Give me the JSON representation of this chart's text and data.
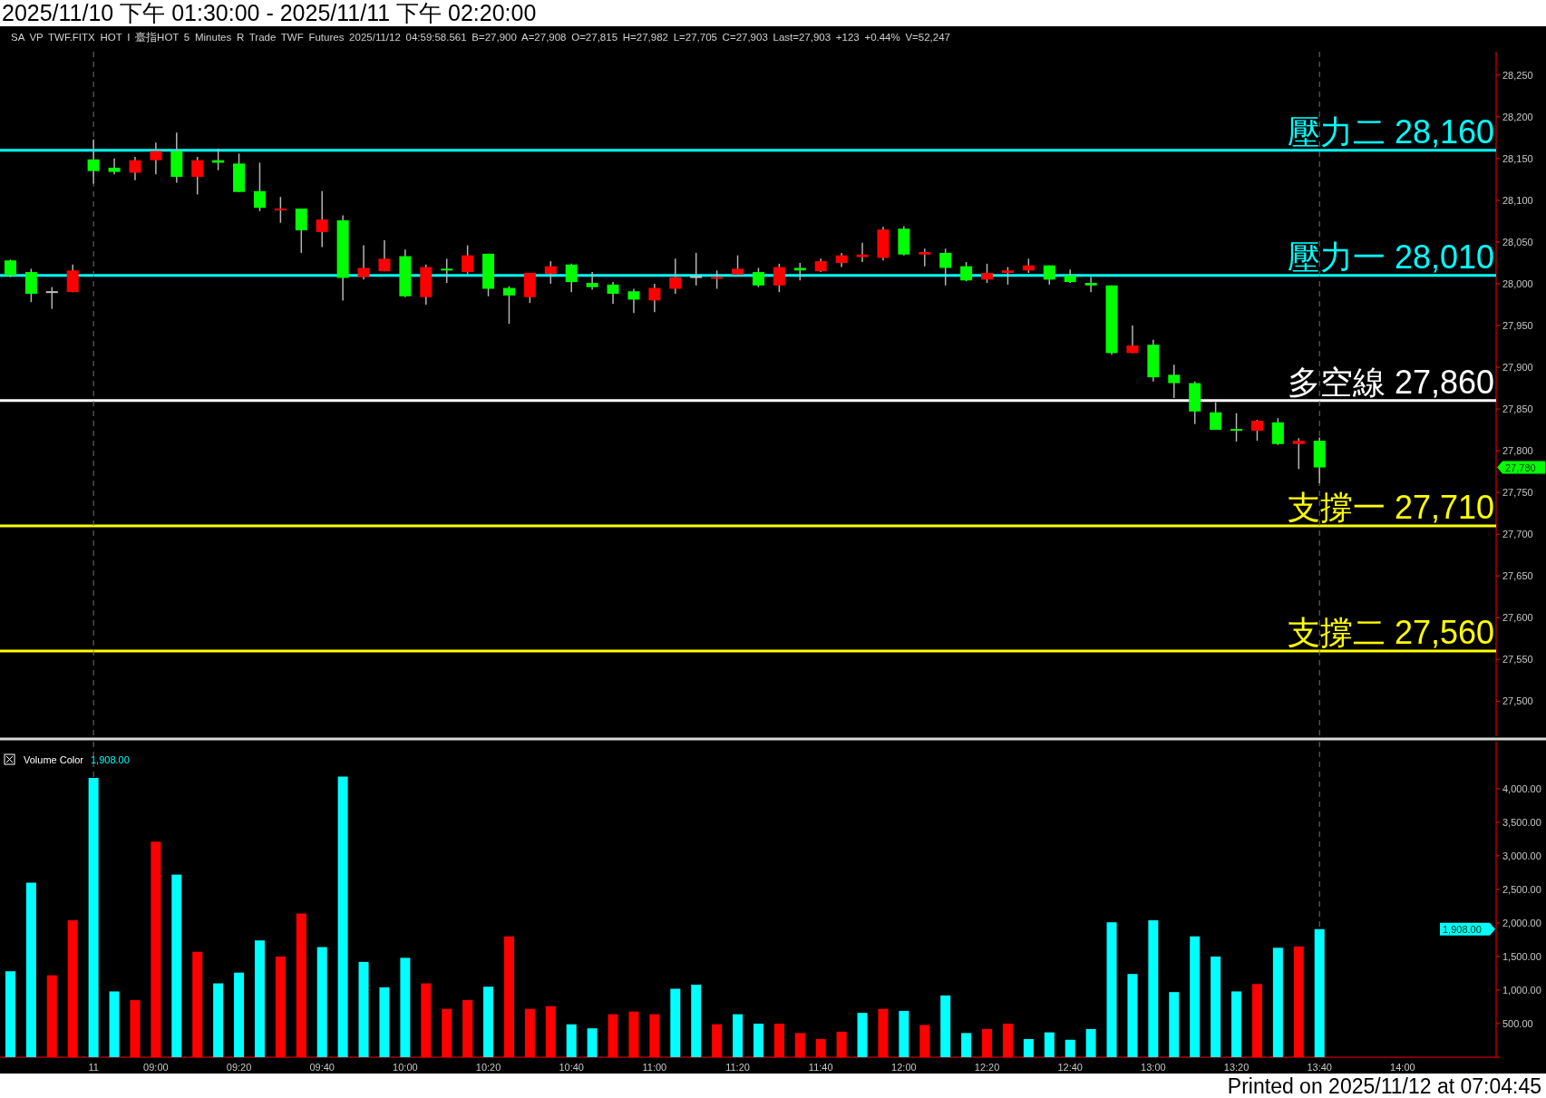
{
  "chart_data": [
    {
      "type": "candlestick",
      "title": "2025/11/10 下午 01:30:00 - 2025/11/11 下午 02:20:00",
      "subtitle": "SA VP TWF.FITX HOT I 臺指HOT 5 Minutes R Trade TWF Futures 2025/11/12 04:59:58.561 B=27,900 A=27,908 O=27,815 H=27,982 L=27,705 C=27,903 Last=27,903 +123 +0.44% V=52,247",
      "categories": [
        null,
        null,
        null,
        null,
        "11",
        null,
        null,
        "09:00",
        null,
        null,
        null,
        "09:20",
        null,
        null,
        null,
        "09:40",
        null,
        null,
        null,
        "10:00",
        null,
        null,
        null,
        "10:20",
        null,
        null,
        null,
        "10:40",
        null,
        null,
        null,
        "11:00",
        null,
        null,
        null,
        "11:20",
        null,
        null,
        null,
        "11:40",
        null,
        null,
        null,
        "12:00",
        null,
        null,
        null,
        "12:20",
        null,
        null,
        null,
        "12:40",
        null,
        null,
        null,
        "13:00",
        null,
        null,
        null,
        "13:20",
        null,
        null,
        null,
        "13:40",
        null,
        null,
        null,
        "14:00",
        null,
        null,
        null,
        null
      ],
      "ohlc": [
        [
          28028,
          28029,
          28008,
          28010
        ],
        [
          28014,
          28018,
          27978,
          27988
        ],
        [
          27990,
          27996,
          27970,
          27990
        ],
        [
          27990,
          28023,
          27990,
          28016
        ],
        [
          28149,
          28173,
          28120,
          28135
        ],
        [
          28139,
          28150,
          28131,
          28134
        ],
        [
          28133,
          28152,
          28124,
          28148
        ],
        [
          28148,
          28169,
          28131,
          28159
        ],
        [
          28159,
          28181,
          28121,
          28128
        ],
        [
          28128,
          28152,
          28107,
          28148
        ],
        [
          28148,
          28162,
          28136,
          28145
        ],
        [
          28144,
          28156,
          28110,
          28110
        ],
        [
          28111,
          28145,
          28087,
          28091
        ],
        [
          28088,
          28104,
          28073,
          28090
        ],
        [
          28090,
          28090,
          28037,
          28064
        ],
        [
          28062,
          28111,
          28044,
          28077
        ],
        [
          28076,
          28082,
          27980,
          28007
        ],
        [
          28008,
          28046,
          28005,
          28019
        ],
        [
          28015,
          28052,
          28015,
          28030
        ],
        [
          28033,
          28041,
          27984,
          27985
        ],
        [
          27984,
          28023,
          27975,
          28020
        ],
        [
          28018,
          28030,
          28001,
          28016
        ],
        [
          28014,
          28046,
          28012,
          28034
        ],
        [
          28036,
          28036,
          27985,
          27994
        ],
        [
          27995,
          27997,
          27952,
          27986
        ],
        [
          27984,
          28013,
          27977,
          28013
        ],
        [
          28012,
          28027,
          28000,
          28021
        ],
        [
          28023,
          28024,
          27990,
          28002
        ],
        [
          28001,
          28014,
          27993,
          27996
        ],
        [
          27999,
          28002,
          27976,
          27988
        ],
        [
          27991,
          27994,
          27965,
          27981
        ],
        [
          27980,
          28000,
          27966,
          27995
        ],
        [
          27994,
          28030,
          27988,
          28008
        ],
        [
          28008,
          28037,
          27998,
          28008
        ],
        [
          28006,
          28016,
          27994,
          28008
        ],
        [
          28011,
          28034,
          28011,
          28018
        ],
        [
          28014,
          28019,
          27996,
          27998
        ],
        [
          27998,
          28024,
          27990,
          28020
        ],
        [
          28019,
          28025,
          28004,
          28016
        ],
        [
          28015,
          28030,
          28014,
          28027
        ],
        [
          28025,
          28037,
          28020,
          28034
        ],
        [
          28032,
          28049,
          28026,
          28035
        ],
        [
          28031,
          28068,
          28028,
          28065
        ],
        [
          28066,
          28069,
          28034,
          28035
        ],
        [
          28035,
          28042,
          28021,
          28038
        ],
        [
          28037,
          28042,
          27998,
          28019
        ],
        [
          28021,
          28026,
          28003,
          28004
        ],
        [
          28005,
          28024,
          28001,
          28013
        ],
        [
          28013,
          28020,
          27999,
          28016
        ],
        [
          28016,
          28030,
          28013,
          28022
        ],
        [
          28022,
          28022,
          27999,
          28005
        ],
        [
          28010,
          28017,
          28001,
          28002
        ],
        [
          28001,
          28008,
          27990,
          27998
        ],
        [
          27998,
          27998,
          27915,
          27917
        ],
        [
          27917,
          27950,
          27917,
          27926
        ],
        [
          27927,
          27933,
          27883,
          27888
        ],
        [
          27891,
          27903,
          27863,
          27881
        ],
        [
          27881,
          27883,
          27832,
          27847
        ],
        [
          27846,
          27858,
          27825,
          27825
        ],
        [
          27826,
          27845,
          27811,
          27824
        ],
        [
          27824,
          27837,
          27812,
          27836
        ],
        [
          27834,
          27839,
          27807,
          27808
        ],
        [
          27808,
          27815,
          27778,
          27812
        ],
        [
          27812,
          27816,
          27761,
          27780
        ],
        null,
        null,
        null,
        null,
        null,
        null,
        null,
        null
      ],
      "colors": [
        "#00ff00",
        "#00ff00",
        "#c0c0c0",
        "#ff0000",
        "#00ff00",
        "#00ff00",
        "#ff0000",
        "#ff0000",
        "#00ff00",
        "#ff0000",
        "#00ff00",
        "#00ff00",
        "#00ff00",
        "#ff0000",
        "#00ff00",
        "#ff0000",
        "#00ff00",
        "#ff0000",
        "#ff0000",
        "#00ff00",
        "#ff0000",
        "#00ff00",
        "#ff0000",
        "#00ff00",
        "#00ff00",
        "#ff0000",
        "#ff0000",
        "#00ff00",
        "#00ff00",
        "#00ff00",
        "#00ff00",
        "#ff0000",
        "#ff0000",
        "#c0c0c0",
        "#ff0000",
        "#ff0000",
        "#00ff00",
        "#ff0000",
        "#00ff00",
        "#ff0000",
        "#ff0000",
        "#ff0000",
        "#ff0000",
        "#00ff00",
        "#ff0000",
        "#00ff00",
        "#00ff00",
        "#ff0000",
        "#ff0000",
        "#ff0000",
        "#00ff00",
        "#00ff00",
        "#00ff00",
        "#00ff00",
        "#ff0000",
        "#00ff00",
        "#00ff00",
        "#00ff00",
        "#00ff00",
        "#00ff00",
        "#ff0000",
        "#00ff00",
        "#ff0000",
        "#00ff00",
        null,
        null,
        null,
        null,
        null,
        null,
        null,
        null
      ],
      "ylim": [
        27458,
        28278
      ],
      "yticks": [
        {
          "value": 27500,
          "label": "27,500"
        },
        {
          "value": 27550,
          "label": "27,550"
        },
        {
          "value": 27600,
          "label": "27,600"
        },
        {
          "value": 27650,
          "label": "27,650"
        },
        {
          "value": 27700,
          "label": "27,700"
        },
        {
          "value": 27750,
          "label": "27,750"
        },
        {
          "value": 27800,
          "label": "27,800"
        },
        {
          "value": 27850,
          "label": "27,850"
        },
        {
          "value": 27900,
          "label": "27,900"
        },
        {
          "value": 27950,
          "label": "27,950"
        },
        {
          "value": 28000,
          "label": "28,000"
        },
        {
          "value": 28050,
          "label": "28,050"
        },
        {
          "value": 28100,
          "label": "28,100"
        },
        {
          "value": 28150,
          "label": "28,150"
        },
        {
          "value": 28200,
          "label": "28,200"
        },
        {
          "value": 28250,
          "label": "28,250"
        }
      ],
      "tick_labels": "y",
      "ref_lines": [
        {
          "axis": "y",
          "value": 28160,
          "label": "壓力二 28,160",
          "color": "#00ffff"
        },
        {
          "axis": "y",
          "value": 28010,
          "label": "壓力一 28,010",
          "color": "#00ffff"
        },
        {
          "axis": "y",
          "value": 27860,
          "label": "多空線 27,860",
          "color": "#ffffff"
        },
        {
          "axis": "y",
          "value": 27710,
          "label": "支撐一 27,710",
          "color": "#ffff00"
        },
        {
          "axis": "y",
          "value": 27560,
          "label": "支撐二 27,560",
          "color": "#ffff00"
        },
        {
          "axis": "x",
          "value": "11",
          "color": "#707070",
          "line_style": "dashed"
        },
        {
          "axis": "x",
          "value": "13:40",
          "color": "#707070",
          "line_style": "dashed"
        }
      ],
      "annotations": [
        "27,780"
      ]
    },
    {
      "type": "bar",
      "categories": [
        null,
        null,
        null,
        null,
        "11",
        null,
        null,
        "09:00",
        null,
        null,
        null,
        "09:20",
        null,
        null,
        null,
        "09:40",
        null,
        null,
        null,
        "10:00",
        null,
        null,
        null,
        "10:20",
        null,
        null,
        null,
        "10:40",
        null,
        null,
        null,
        "11:00",
        null,
        null,
        null,
        "11:20",
        null,
        null,
        null,
        "11:40",
        null,
        null,
        null,
        "12:00",
        null,
        null,
        null,
        "12:20",
        null,
        null,
        null,
        "12:40",
        null,
        null,
        null,
        "13:00",
        null,
        null,
        null,
        "13:20",
        null,
        null,
        null,
        "13:40",
        null,
        null,
        null,
        "14:00",
        null,
        null,
        null,
        null
      ],
      "values": [
        1280,
        2600,
        1220,
        2040,
        4160,
        980,
        850,
        3210,
        2720,
        1570,
        1100,
        1260,
        1740,
        1500,
        2140,
        1640,
        4180,
        1420,
        1040,
        1480,
        1100,
        720,
        850,
        1050,
        1800,
        720,
        760,
        490,
        430,
        640,
        680,
        640,
        1020,
        1080,
        490,
        640,
        500,
        500,
        360,
        270,
        380,
        660,
        720,
        690,
        480,
        920,
        360,
        420,
        500,
        270,
        370,
        260,
        420,
        2010,
        1240,
        2040,
        970,
        1800,
        1500,
        980,
        1090,
        1630,
        1650,
        1908,
        null,
        null,
        null,
        null,
        null,
        null,
        null,
        null
      ],
      "colors": [
        "#00ffff",
        "#00ffff",
        "#ff0000",
        "#ff0000",
        "#00ffff",
        "#00ffff",
        "#ff0000",
        "#ff0000",
        "#00ffff",
        "#ff0000",
        "#00ffff",
        "#00ffff",
        "#00ffff",
        "#ff0000",
        "#ff0000",
        "#00ffff",
        "#00ffff",
        "#00ffff",
        "#00ffff",
        "#00ffff",
        "#ff0000",
        "#ff0000",
        "#ff0000",
        "#00ffff",
        "#ff0000",
        "#ff0000",
        "#ff0000",
        "#00ffff",
        "#00ffff",
        "#ff0000",
        "#ff0000",
        "#ff0000",
        "#00ffff",
        "#00ffff",
        "#ff0000",
        "#00ffff",
        "#00ffff",
        "#ff0000",
        "#ff0000",
        "#ff0000",
        "#ff0000",
        "#00ffff",
        "#ff0000",
        "#00ffff",
        "#ff0000",
        "#00ffff",
        "#00ffff",
        "#ff0000",
        "#ff0000",
        "#00ffff",
        "#00ffff",
        "#00ffff",
        "#00ffff",
        "#00ffff",
        "#00ffff",
        "#00ffff",
        "#00ffff",
        "#00ffff",
        "#00ffff",
        "#00ffff",
        "#ff0000",
        "#00ffff",
        "#ff0000",
        "#00ffff",
        null,
        null,
        null,
        null,
        null,
        null,
        null,
        null
      ],
      "ylim": [
        0,
        4700
      ],
      "yticks": [
        {
          "value": 0,
          "label": null
        },
        {
          "value": 500,
          "label": "500.00"
        },
        {
          "value": 1000,
          "label": "1,000.00"
        },
        {
          "value": 1500,
          "label": "1,500.00"
        },
        {
          "value": 2000,
          "label": "2,000.00"
        },
        {
          "value": 2500,
          "label": "2,500.00"
        },
        {
          "value": 3000,
          "label": "3,000.00"
        },
        {
          "value": 3500,
          "label": "3,500.00"
        },
        {
          "value": 4000,
          "label": "4,000.00"
        }
      ],
      "ref_lines": [
        {
          "axis": "x",
          "value": "11",
          "color": "#707070",
          "line_style": "dashed"
        },
        {
          "axis": "x",
          "value": "13:40",
          "color": "#707070",
          "line_style": "dashed"
        }
      ],
      "annotations": [
        "Volume Color",
        "1,908.00",
        "1,908.00",
        "Printed on 2025/11/12 at 07:04:45"
      ]
    }
  ]
}
